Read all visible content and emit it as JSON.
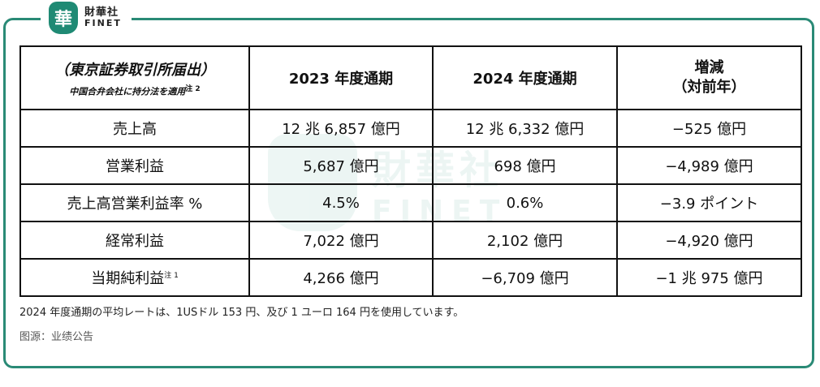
{
  "brand": {
    "name_zh": "財華社",
    "name_en": "FINET",
    "seal_char": "華"
  },
  "table": {
    "header": {
      "title": "（東京証券取引所届出）",
      "subtitle": "中国合弁会社に持分法を適用",
      "subtitle_note": "注 2",
      "col2023": "2023 年度通期",
      "col2024": "2024 年度通期",
      "change_line1": "増減",
      "change_line2": "（対前年）"
    },
    "rows": [
      {
        "label": "売上高",
        "note": "",
        "v2023": "12 兆 6,857 億円",
        "v2024": "12 兆 6,332 億円",
        "change": "−525 億円"
      },
      {
        "label": "営業利益",
        "note": "",
        "v2023": "5,687 億円",
        "v2024": "698 億円",
        "change": "−4,989 億円"
      },
      {
        "label": "売上高営業利益率 %",
        "note": "",
        "v2023": "4.5%",
        "v2024": "0.6%",
        "change": "−3.9 ポイント"
      },
      {
        "label": "経常利益",
        "note": "",
        "v2023": "7,022 億円",
        "v2024": "2,102 億円",
        "change": "−4,920 億円"
      },
      {
        "label": "当期純利益",
        "note": "注 1",
        "v2023": "4,266 億円",
        "v2024": "−6,709 億円",
        "change": "−1 兆 975 億円"
      }
    ]
  },
  "footnote": "2024 年度通期の平均レートは、1USドル 153 円、及び 1 ユーロ 164 円を使用しています。",
  "source": "图源：业绩公告",
  "colors": {
    "frame": "#2a8a76",
    "brand": "#1f8a74"
  }
}
